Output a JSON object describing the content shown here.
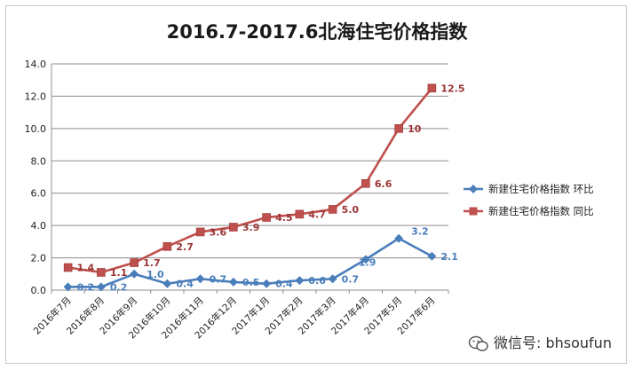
{
  "chart_data": {
    "type": "line",
    "title": "2016.7-2017.6北海住宅价格指数",
    "categories": [
      "2016年7月",
      "2016年8月",
      "2016年9月",
      "2016年10月",
      "2016年11月",
      "2016年12月",
      "2017年1月",
      "2017年2月",
      "2017年3月",
      "2017年4月",
      "2017年5月",
      "2017年6月"
    ],
    "series": [
      {
        "name": "新建住宅价格指数 环比",
        "color": "#4a7ebb",
        "marker": "diamond",
        "values": [
          0.2,
          0.2,
          1.0,
          0.4,
          0.7,
          0.5,
          0.4,
          0.6,
          0.7,
          1.9,
          3.2,
          2.1
        ],
        "labels": [
          "0.2",
          "0.2",
          "1.0",
          "0.4",
          "0.7",
          "0.5",
          "0.4",
          "0.6",
          "0.7",
          "1.9",
          "3.2",
          "2.1"
        ]
      },
      {
        "name": "新建住宅价格指数 同比",
        "color": "#c0504d",
        "marker": "square",
        "values": [
          1.4,
          1.1,
          1.7,
          2.7,
          3.6,
          3.9,
          4.5,
          4.7,
          5.0,
          6.6,
          10,
          12.5
        ],
        "labels": [
          "1.4",
          "1.1",
          "1.7",
          "2.7",
          "3.6",
          "3.9",
          "4.5",
          "4.7",
          "5.0",
          "6.6",
          "10",
          "12.5"
        ]
      }
    ],
    "yticks": [
      "0.0",
      "2.0",
      "4.0",
      "6.0",
      "8.0",
      "10.0",
      "12.0",
      "14.0"
    ],
    "ylim": [
      0,
      14
    ],
    "grid": true,
    "legend": "right"
  },
  "watermark": {
    "icon": "wechat-icon",
    "text": "微信号: bhsoufun"
  }
}
